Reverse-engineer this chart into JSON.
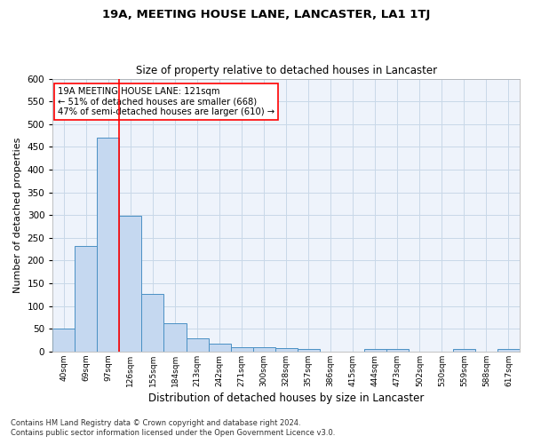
{
  "title": "19A, MEETING HOUSE LANE, LANCASTER, LA1 1TJ",
  "subtitle": "Size of property relative to detached houses in Lancaster",
  "xlabel": "Distribution of detached houses by size in Lancaster",
  "ylabel": "Number of detached properties",
  "categories": [
    "40sqm",
    "69sqm",
    "97sqm",
    "126sqm",
    "155sqm",
    "184sqm",
    "213sqm",
    "242sqm",
    "271sqm",
    "300sqm",
    "328sqm",
    "357sqm",
    "386sqm",
    "415sqm",
    "444sqm",
    "473sqm",
    "502sqm",
    "530sqm",
    "559sqm",
    "588sqm",
    "617sqm"
  ],
  "values": [
    50,
    233,
    470,
    298,
    127,
    63,
    30,
    17,
    10,
    10,
    8,
    5,
    0,
    0,
    5,
    5,
    0,
    0,
    5,
    0,
    5
  ],
  "bar_color": "#c5d8f0",
  "bar_edge_color": "#4a90c4",
  "grid_color": "#c8d8e8",
  "bg_color": "#eef3fb",
  "red_line_x": 2.5,
  "annotation_text": "19A MEETING HOUSE LANE: 121sqm\n← 51% of detached houses are smaller (668)\n47% of semi-detached houses are larger (610) →",
  "annotation_box_color": "white",
  "annotation_box_edge": "red",
  "ylim": [
    0,
    600
  ],
  "yticks": [
    0,
    50,
    100,
    150,
    200,
    250,
    300,
    350,
    400,
    450,
    500,
    550,
    600
  ],
  "footer_line1": "Contains HM Land Registry data © Crown copyright and database right 2024.",
  "footer_line2": "Contains public sector information licensed under the Open Government Licence v3.0."
}
